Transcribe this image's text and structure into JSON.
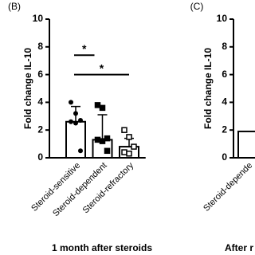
{
  "chart_data": [
    {
      "type": "bar",
      "panel": "(B)",
      "y_label": "Fold change IL-10",
      "x_label": "1 month after steroids",
      "categories": [
        "Steroid-sensitive",
        "Steroid-dependent",
        "Steroid-refractory"
      ],
      "values": [
        2.6,
        1.3,
        0.8
      ],
      "errors": [
        1.1,
        1.8,
        0.6
      ],
      "points": [
        [
          4.0,
          3.2,
          2.7,
          2.6,
          2.5,
          0.5
        ],
        [
          3.8,
          3.6,
          1.4,
          1.3,
          1.2,
          0.5
        ],
        [
          2.0,
          1.5,
          0.8,
          0.4,
          0.3
        ]
      ],
      "markers": [
        "circle",
        "square",
        "open-square"
      ],
      "significance": [
        {
          "label": "*",
          "from": 0,
          "to": 1,
          "y": 7.4
        },
        {
          "label": "*",
          "from": 0,
          "to": 2,
          "y": 6.0
        }
      ],
      "color": "#ffffff",
      "ylim": [
        0,
        10
      ],
      "yticks": [
        0,
        2,
        4,
        6,
        8,
        10
      ]
    },
    {
      "type": "bar",
      "panel": "(C)",
      "y_label": "Fold change IL-10",
      "x_label": "After r",
      "categories": [
        "Steroid-depende"
      ],
      "values": [
        1.9
      ],
      "color": "#ffffff",
      "ylim": [
        0,
        10
      ],
      "yticks": [
        0,
        2,
        4,
        6,
        8,
        10
      ]
    }
  ]
}
